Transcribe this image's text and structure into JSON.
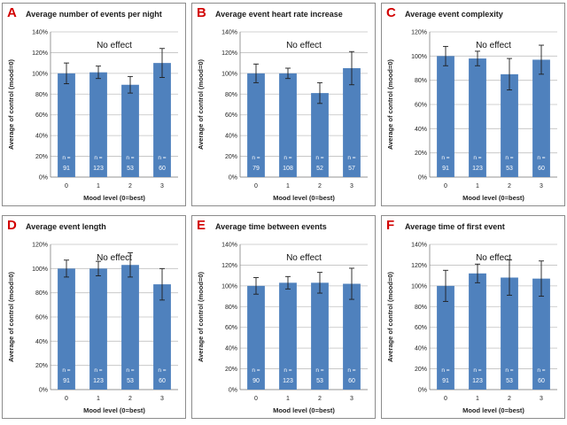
{
  "figure": {
    "bar_color": "#4f81bd",
    "error_color": "#1f1f1f",
    "grid_color": "#c0c0c0",
    "letter_color": "#d20000",
    "note_color": "#ffffff"
  },
  "chart_data": [
    {
      "panel_letter": "A",
      "type": "bar",
      "title": "Average number of events per night",
      "annotation": "No effect",
      "xlabel": "Mood level (0=best)",
      "ylabel": "Average of control (mood=0)",
      "categories": [
        "0",
        "1",
        "2",
        "3"
      ],
      "values": [
        100,
        101,
        89,
        110
      ],
      "errors": [
        10,
        6,
        8,
        14
      ],
      "n_label": "n =",
      "n": [
        "91",
        "123",
        "53",
        "60"
      ],
      "yticks": [
        "0%",
        "20%",
        "40%",
        "60%",
        "80%",
        "100%",
        "120%",
        "140%"
      ],
      "ylim": [
        0,
        140
      ]
    },
    {
      "panel_letter": "B",
      "type": "bar",
      "title": "Average event heart rate increase",
      "annotation": "No effect",
      "xlabel": "Mood level (0=best)",
      "ylabel": "Average of control (mood=0)",
      "categories": [
        "0",
        "1",
        "2",
        "3"
      ],
      "values": [
        100,
        100,
        81,
        105
      ],
      "errors": [
        9,
        5,
        10,
        16
      ],
      "n_label": "n =",
      "n": [
        "79",
        "108",
        "52",
        "57"
      ],
      "yticks": [
        "0%",
        "20%",
        "40%",
        "60%",
        "80%",
        "100%",
        "120%",
        "140%"
      ],
      "ylim": [
        0,
        140
      ]
    },
    {
      "panel_letter": "C",
      "type": "bar",
      "title": "Average event complexity",
      "annotation": "No effect",
      "xlabel": "Mood level (0=best)",
      "ylabel": "Average of control (mood=0)",
      "categories": [
        "0",
        "1",
        "2",
        "3"
      ],
      "values": [
        100,
        98,
        85,
        97
      ],
      "errors": [
        8,
        6,
        13,
        12
      ],
      "n_label": "n =",
      "n": [
        "91",
        "123",
        "53",
        "60"
      ],
      "yticks": [
        "0%",
        "20%",
        "40%",
        "60%",
        "80%",
        "100%",
        "120%"
      ],
      "ylim": [
        0,
        120
      ]
    },
    {
      "panel_letter": "D",
      "type": "bar",
      "title": "Average event length",
      "annotation": "No effect",
      "xlabel": "Mood level (0=best)",
      "ylabel": "Average of control (mood=0)",
      "categories": [
        "0",
        "1",
        "2",
        "3"
      ],
      "values": [
        100,
        100,
        103,
        87
      ],
      "errors": [
        7,
        6,
        10,
        13
      ],
      "n_label": "n =",
      "n": [
        "91",
        "123",
        "53",
        "60"
      ],
      "yticks": [
        "0%",
        "20%",
        "40%",
        "60%",
        "80%",
        "100%",
        "120%"
      ],
      "ylim": [
        0,
        120
      ]
    },
    {
      "panel_letter": "E",
      "type": "bar",
      "title": "Average time between events",
      "annotation": "No effect",
      "xlabel": "Mood level (0=best)",
      "ylabel": "Average of control (mood=0)",
      "categories": [
        "0",
        "1",
        "2",
        "3"
      ],
      "values": [
        100,
        103,
        103,
        102
      ],
      "errors": [
        8,
        6,
        10,
        15
      ],
      "n_label": "n =",
      "n": [
        "90",
        "123",
        "53",
        "60"
      ],
      "yticks": [
        "0%",
        "20%",
        "40%",
        "60%",
        "80%",
        "100%",
        "120%",
        "140%"
      ],
      "ylim": [
        0,
        140
      ]
    },
    {
      "panel_letter": "F",
      "type": "bar",
      "title": "Average time of first event",
      "annotation": "No effect",
      "xlabel": "Mood level (0=best)",
      "ylabel": "Average of control (mood=0)",
      "categories": [
        "0",
        "1",
        "2",
        "3"
      ],
      "values": [
        100,
        112,
        108,
        107
      ],
      "errors": [
        15,
        9,
        17,
        17
      ],
      "n_label": "n =",
      "n": [
        "91",
        "123",
        "53",
        "60"
      ],
      "yticks": [
        "0%",
        "20%",
        "40%",
        "60%",
        "80%",
        "100%",
        "120%",
        "140%"
      ],
      "ylim": [
        0,
        140
      ]
    }
  ]
}
